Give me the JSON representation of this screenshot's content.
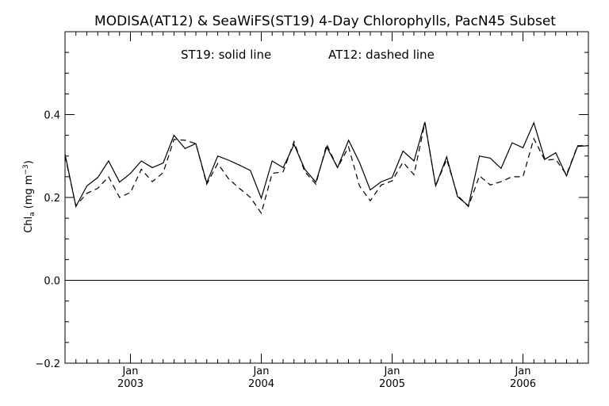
{
  "chart_data": {
    "type": "line",
    "title": "MODISA(AT12) & SeaWiFS(ST19) 4-Day Chlorophylls, PacN45 Subset",
    "legend_note_1": "ST19: solid line",
    "legend_note_2": "AT12: dashed line",
    "ylabel_main": "Chl",
    "ylabel_sub": "a",
    "ylabel_units": "(mg m",
    "ylabel_exp": "−3",
    "ylabel_close": ")",
    "ylim": [
      -0.2,
      0.6
    ],
    "xlim": [
      2002.5,
      2006.5
    ],
    "yticks": [
      {
        "value": -0.2,
        "label": "−0.2"
      },
      {
        "value": 0.0,
        "label": "0.0"
      },
      {
        "value": 0.2,
        "label": "0.2"
      },
      {
        "value": 0.4,
        "label": "0.4"
      }
    ],
    "yminor_step": 0.05,
    "xticks": [
      {
        "value": 2003,
        "month": "Jan",
        "year": "2003"
      },
      {
        "value": 2004,
        "month": "Jan",
        "year": "2004"
      },
      {
        "value": 2005,
        "month": "Jan",
        "year": "2005"
      },
      {
        "value": 2006,
        "month": "Jan",
        "year": "2006"
      }
    ],
    "xminor_step": 0.08333333,
    "zero_line": 0.0,
    "series": [
      {
        "name": "ST19",
        "style": "solid",
        "x": [
          2002.5,
          2002.583,
          2002.667,
          2002.75,
          2002.833,
          2002.917,
          2003.0,
          2003.083,
          2003.167,
          2003.25,
          2003.333,
          2003.417,
          2003.5,
          2003.583,
          2003.667,
          2003.75,
          2003.833,
          2003.917,
          2004.0,
          2004.083,
          2004.167,
          2004.25,
          2004.333,
          2004.417,
          2004.5,
          2004.583,
          2004.667,
          2004.75,
          2004.833,
          2004.917,
          2005.0,
          2005.083,
          2005.167,
          2005.25,
          2005.333,
          2005.417,
          2005.5,
          2005.583,
          2005.667,
          2005.75,
          2005.833,
          2005.917,
          2006.0,
          2006.083,
          2006.167,
          2006.25,
          2006.333,
          2006.417,
          2006.5
        ],
        "values": [
          0.305,
          0.178,
          0.228,
          0.248,
          0.288,
          0.237,
          0.258,
          0.288,
          0.272,
          0.283,
          0.35,
          0.318,
          0.33,
          0.235,
          0.3,
          0.29,
          0.278,
          0.265,
          0.198,
          0.288,
          0.272,
          0.328,
          0.268,
          0.237,
          0.322,
          0.272,
          0.338,
          0.285,
          0.218,
          0.238,
          0.248,
          0.312,
          0.288,
          0.382,
          0.228,
          0.298,
          0.202,
          0.18,
          0.3,
          0.295,
          0.27,
          0.332,
          0.32,
          0.38,
          0.292,
          0.308,
          0.252,
          0.323,
          0.325
        ]
      },
      {
        "name": "AT12",
        "style": "dashed",
        "x": [
          2002.5,
          2002.583,
          2002.667,
          2002.75,
          2002.833,
          2002.917,
          2003.0,
          2003.083,
          2003.167,
          2003.25,
          2003.333,
          2003.417,
          2003.5,
          2003.583,
          2003.667,
          2003.75,
          2003.833,
          2003.917,
          2004.0,
          2004.083,
          2004.167,
          2004.25,
          2004.333,
          2004.417,
          2004.5,
          2004.583,
          2004.667,
          2004.75,
          2004.833,
          2004.917,
          2005.0,
          2005.083,
          2005.167,
          2005.25,
          2005.333,
          2005.417,
          2005.5,
          2005.583,
          2005.667,
          2005.75,
          2005.833,
          2005.917,
          2006.0,
          2006.083,
          2006.167,
          2006.25,
          2006.333,
          2006.417,
          2006.5
        ],
        "values": [
          0.3,
          0.18,
          0.21,
          0.222,
          0.25,
          0.2,
          0.212,
          0.268,
          0.238,
          0.26,
          0.34,
          0.338,
          0.33,
          0.232,
          0.282,
          0.245,
          0.222,
          0.2,
          0.162,
          0.258,
          0.262,
          0.335,
          0.262,
          0.232,
          0.328,
          0.272,
          0.322,
          0.228,
          0.192,
          0.23,
          0.24,
          0.285,
          0.255,
          0.38,
          0.228,
          0.292,
          0.205,
          0.178,
          0.252,
          0.23,
          0.238,
          0.25,
          0.25,
          0.342,
          0.29,
          0.292,
          0.255,
          0.325,
          0.325
        ]
      }
    ]
  }
}
